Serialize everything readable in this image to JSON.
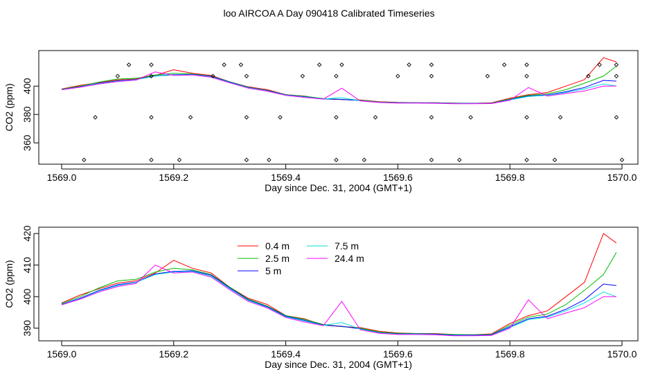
{
  "figure_title": "loo AIRCOA A  Day 090418  Calibrated Timeseries",
  "chart_data": [
    {
      "type": "line",
      "panel": "top",
      "xlabel": "Day since Dec. 31, 2004 (GMT+1)",
      "ylabel": "CO2 (ppm)",
      "xlim": [
        1569.0,
        1570.0
      ],
      "ylim": [
        345,
        425
      ],
      "xticks": [
        "1569.0",
        "1569.2",
        "1569.4",
        "1569.6",
        "1569.8",
        "1570.0"
      ],
      "yticks": [
        "360",
        "380",
        "400"
      ],
      "grid": false,
      "legend": null,
      "series_style": "same as bottom panel (5 heights)",
      "markers": {
        "shape": "open-diamond",
        "rows_ppm": [
          415,
          407,
          378,
          348
        ],
        "x_row_415": [
          1569.12,
          1569.16,
          1569.29,
          1569.32,
          1569.46,
          1569.5,
          1569.62,
          1569.66,
          1569.79,
          1569.83,
          1569.96,
          1569.99
        ],
        "x_row_407": [
          1569.1,
          1569.16,
          1569.27,
          1569.33,
          1569.43,
          1569.49,
          1569.6,
          1569.66,
          1569.76,
          1569.83,
          1569.94,
          1569.99
        ],
        "x_row_378": [
          1569.06,
          1569.16,
          1569.23,
          1569.33,
          1569.39,
          1569.49,
          1569.56,
          1569.66,
          1569.73,
          1569.83,
          1569.89,
          1569.99
        ],
        "x_row_348": [
          1569.04,
          1569.16,
          1569.21,
          1569.33,
          1569.37,
          1569.49,
          1569.54,
          1569.66,
          1569.71,
          1569.83,
          1569.88,
          1570.0
        ]
      }
    },
    {
      "type": "line",
      "panel": "bottom",
      "xlabel": "Day since Dec. 31, 2004 (GMT+1)",
      "ylabel": "CO2 (ppm)",
      "xlim": [
        1569.0,
        1570.0
      ],
      "ylim": [
        386,
        422
      ],
      "xticks": [
        "1569.0",
        "1569.2",
        "1569.4",
        "1569.6",
        "1569.8",
        "1570.0"
      ],
      "yticks": [
        "390",
        "400",
        "410",
        "420"
      ],
      "grid": false,
      "legend": "top-left (inside plot, two columns)",
      "x": [
        1569.0,
        1569.033,
        1569.067,
        1569.1,
        1569.133,
        1569.167,
        1569.2,
        1569.233,
        1569.267,
        1569.3,
        1569.333,
        1569.367,
        1569.4,
        1569.433,
        1569.467,
        1569.5,
        1569.533,
        1569.567,
        1569.6,
        1569.633,
        1569.667,
        1569.7,
        1569.733,
        1569.767,
        1569.8,
        1569.833,
        1569.867,
        1569.9,
        1569.933,
        1569.967,
        1569.99
      ],
      "series": [
        {
          "name": "0.4 m",
          "color": "#ff0000",
          "values": [
            398.0,
            400.5,
            402.5,
            404.3,
            405.0,
            407.5,
            411.5,
            409.0,
            407.5,
            403.0,
            399.5,
            397.5,
            394.0,
            393.0,
            391.0,
            390.5,
            390.2,
            389.0,
            388.5,
            388.3,
            388.3,
            388.0,
            387.9,
            388.2,
            391.5,
            394.0,
            395.5,
            400.0,
            404.5,
            420.0,
            417.0
          ]
        },
        {
          "name": "2.5 m",
          "color": "#00bb00",
          "values": [
            397.8,
            400.0,
            402.8,
            405.0,
            405.5,
            407.8,
            409.0,
            408.5,
            407.0,
            403.0,
            399.2,
            397.0,
            394.0,
            392.8,
            391.2,
            390.5,
            390.0,
            388.8,
            388.4,
            388.3,
            388.2,
            388.0,
            387.9,
            388.0,
            391.0,
            393.5,
            394.5,
            397.5,
            402.0,
            407.0,
            414.0
          ]
        },
        {
          "name": "5 m",
          "color": "#0000ff",
          "values": [
            397.6,
            399.5,
            402.0,
            403.8,
            404.6,
            407.2,
            408.0,
            408.2,
            406.8,
            402.8,
            399.0,
            396.8,
            393.8,
            392.5,
            391.0,
            390.6,
            389.8,
            388.6,
            388.2,
            388.2,
            388.1,
            387.8,
            387.8,
            387.9,
            390.5,
            393.0,
            393.8,
            396.0,
            399.0,
            404.0,
            403.5
          ]
        },
        {
          "name": "7.5 m",
          "color": "#00dddd",
          "values": [
            397.5,
            399.3,
            401.8,
            403.5,
            404.5,
            407.0,
            407.8,
            408.0,
            406.5,
            402.5,
            398.8,
            396.6,
            393.6,
            392.3,
            390.9,
            391.8,
            389.7,
            388.5,
            388.1,
            388.1,
            388.0,
            387.7,
            387.7,
            387.8,
            390.2,
            392.7,
            393.5,
            395.5,
            398.0,
            401.5,
            400.0
          ]
        },
        {
          "name": "24.4 m",
          "color": "#ff00ff",
          "values": [
            397.4,
            399.2,
            401.5,
            403.2,
            404.2,
            410.0,
            407.5,
            407.8,
            406.2,
            402.2,
            398.5,
            396.4,
            393.4,
            392.0,
            390.8,
            398.5,
            389.5,
            388.4,
            388.0,
            388.0,
            387.9,
            387.6,
            387.6,
            387.7,
            390.0,
            399.0,
            393.0,
            394.8,
            396.5,
            400.0,
            400.0
          ]
        }
      ]
    }
  ]
}
